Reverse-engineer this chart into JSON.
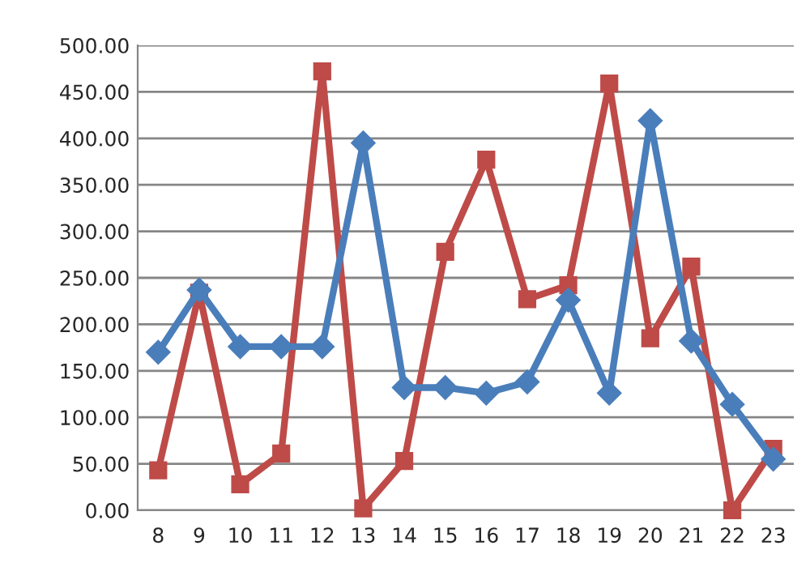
{
  "chart_data": {
    "type": "line",
    "categories": [
      "8",
      "9",
      "10",
      "11",
      "12",
      "13",
      "14",
      "15",
      "16",
      "17",
      "18",
      "19",
      "20",
      "21",
      "22",
      "23"
    ],
    "series": [
      {
        "color": "#4a7ebb",
        "marker": "diamond",
        "values": [
          170,
          237,
          176,
          176,
          176,
          395,
          132,
          132,
          126,
          138,
          226,
          126,
          419,
          182,
          114,
          55
        ]
      },
      {
        "color": "#be4b48",
        "marker": "square",
        "values": [
          43,
          234,
          28,
          61,
          472,
          2,
          53,
          278,
          377,
          227,
          242,
          459,
          185,
          262,
          0,
          66
        ]
      }
    ],
    "ylim": [
      0,
      500
    ],
    "yticks": [
      {
        "value": 0,
        "label": "0.00"
      },
      {
        "value": 50,
        "label": "50.00"
      },
      {
        "value": 100,
        "label": "100.00"
      },
      {
        "value": 150,
        "label": "150.00"
      },
      {
        "value": 200,
        "label": "200.00"
      },
      {
        "value": 250,
        "label": "250.00"
      },
      {
        "value": 300,
        "label": "300.00"
      },
      {
        "value": 350,
        "label": "350.00"
      },
      {
        "value": 400,
        "label": "400.00"
      },
      {
        "value": 450,
        "label": "450.00"
      },
      {
        "value": 500,
        "label": "500.00"
      }
    ],
    "grid": "y",
    "line_style": "solid"
  }
}
